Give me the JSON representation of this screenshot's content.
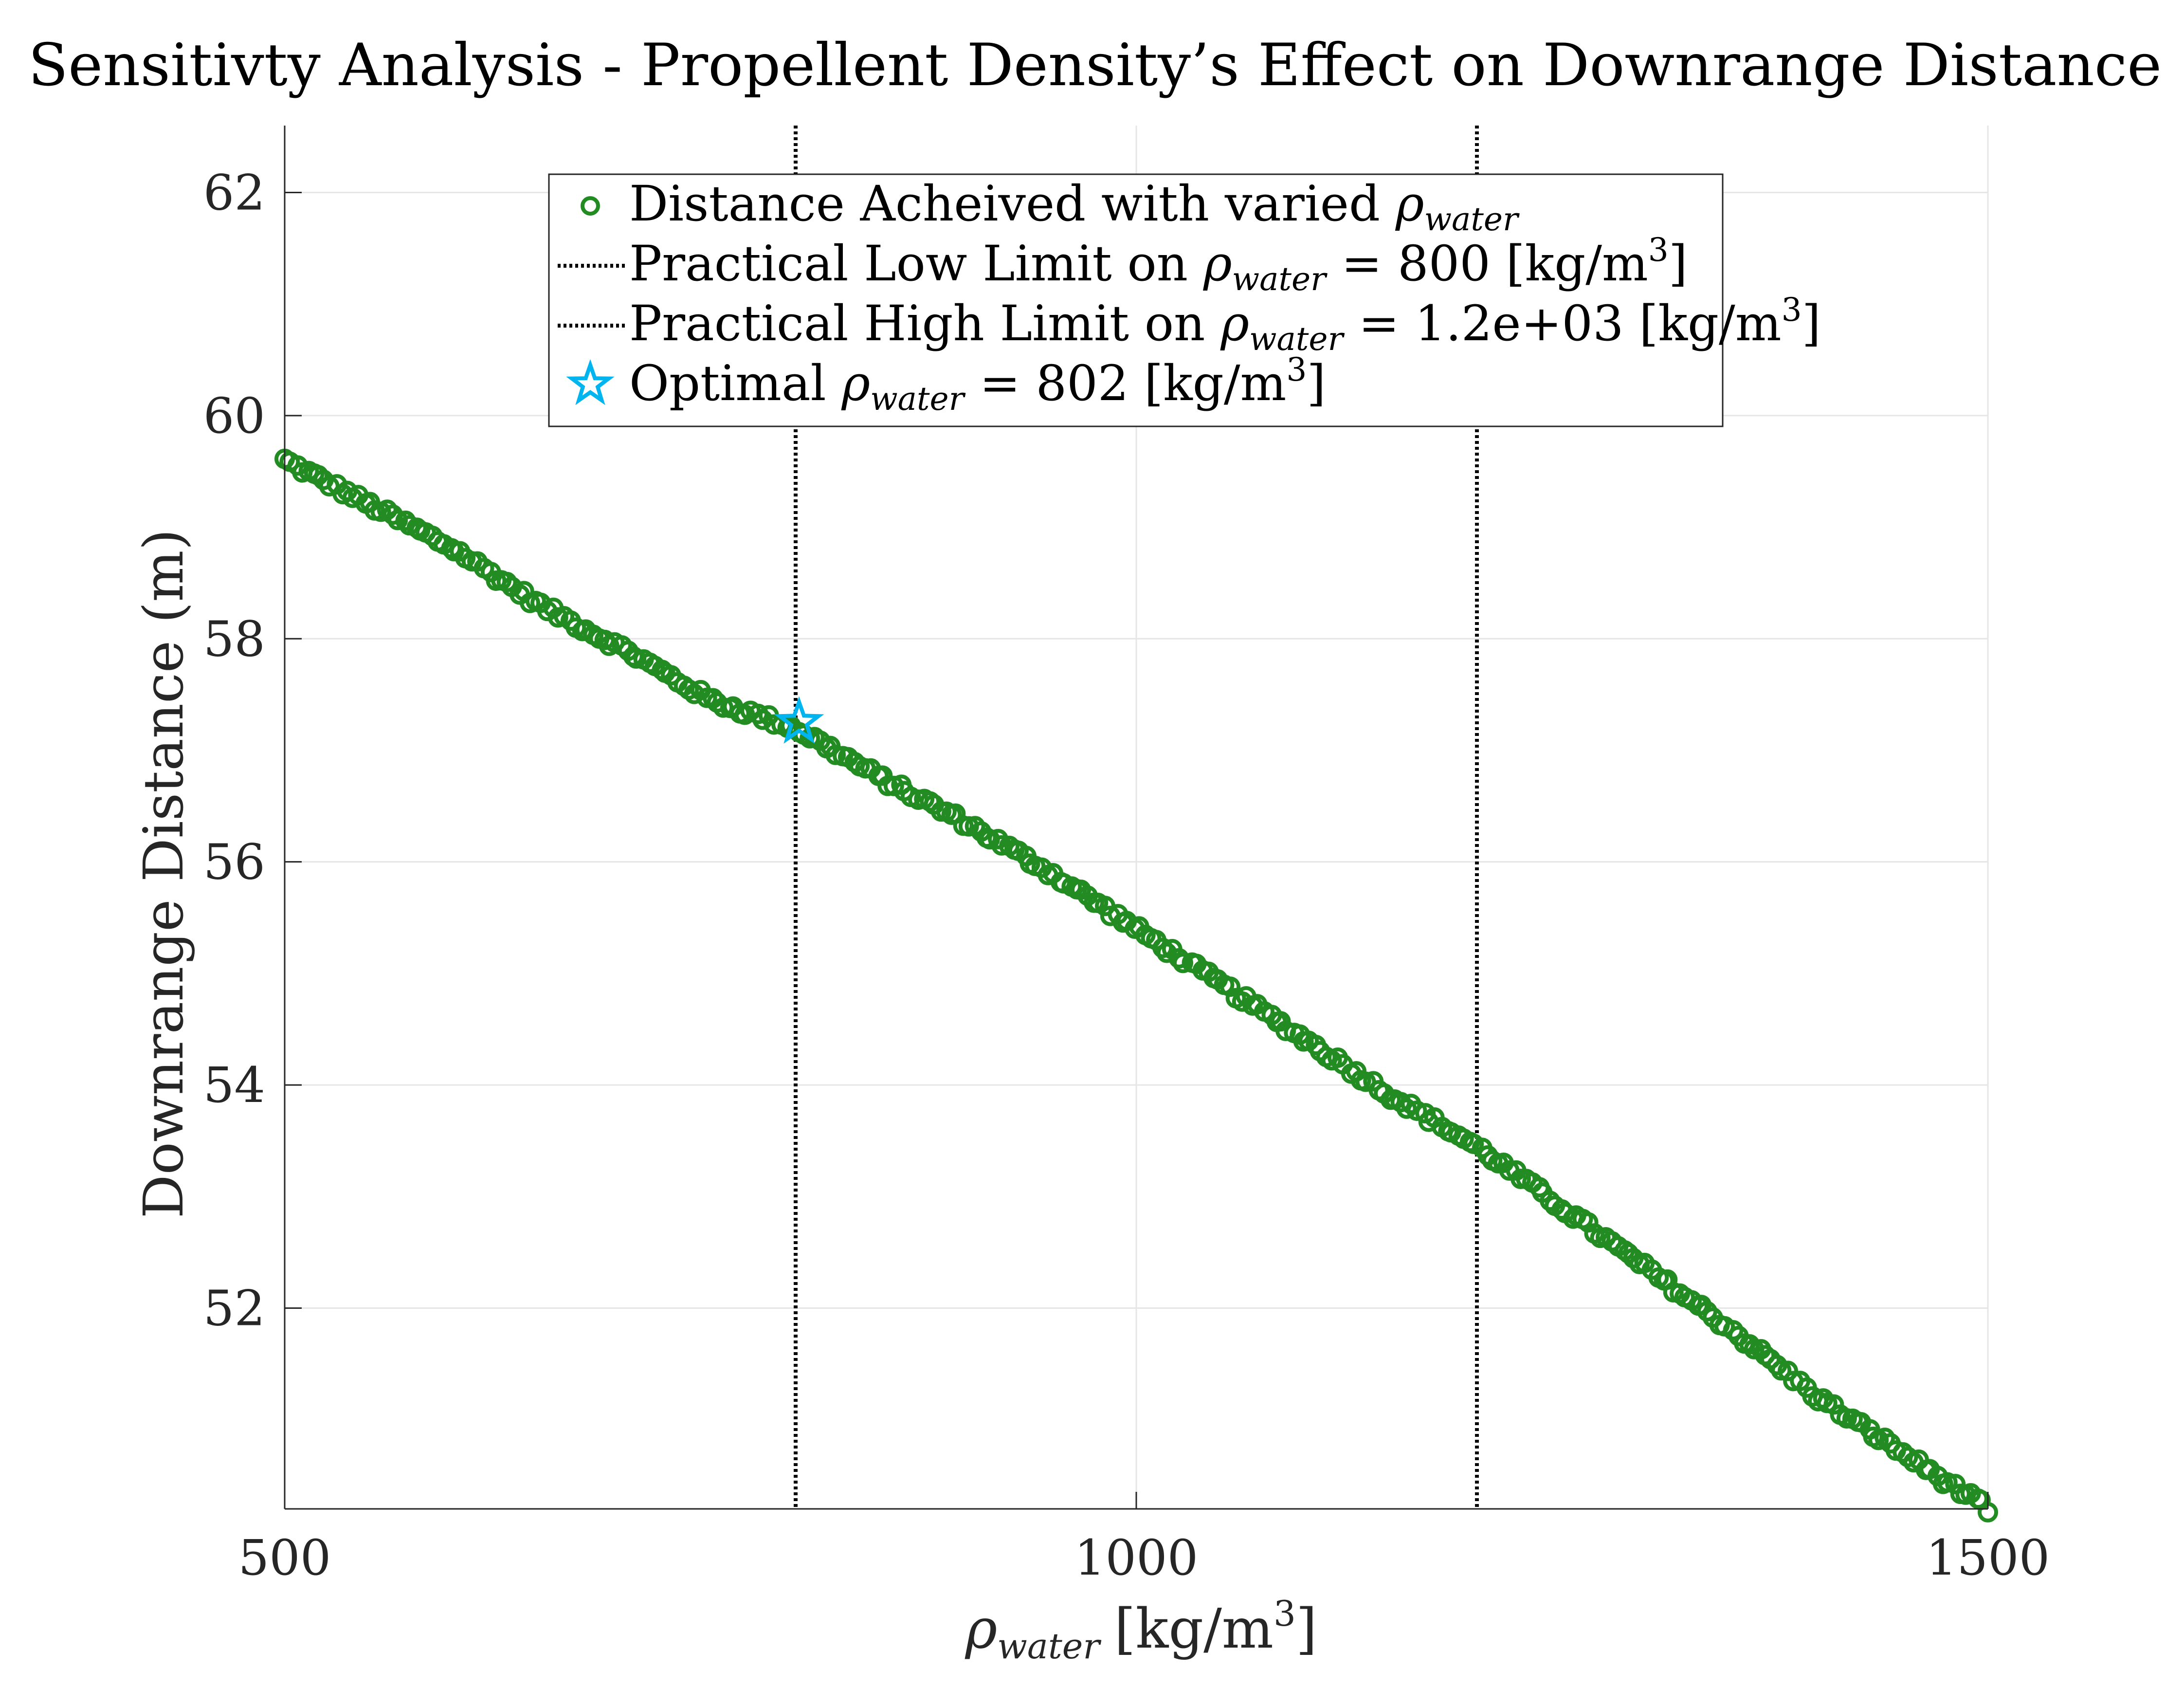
{
  "chart_data": {
    "type": "scatter",
    "title": "Sensitivty Analysis - Propellent Density’s Effect on Downrange Distance",
    "xlabel": {
      "main": "ρ",
      "sub": "water",
      "unit": "[kg/m",
      "sup": "3",
      "close": "]"
    },
    "ylabel": "Downrange Distance (m)",
    "xlim": [
      500,
      1500
    ],
    "ylim": [
      50.2,
      62.6
    ],
    "xticks": [
      500,
      1000,
      1500
    ],
    "yticks": [
      52,
      54,
      56,
      58,
      60,
      62
    ],
    "grid": true,
    "legend_position": "top-center",
    "legend": [
      {
        "kind": "marker-circle",
        "text": "Distance Acheived with varied ",
        "rho": "ρ",
        "sub": "water",
        "tail": ""
      },
      {
        "kind": "line-dotted",
        "text": "Practical Low Limit on ",
        "rho": "ρ",
        "sub": "water",
        "tail": " = 800 [kg/m",
        "sup": "3",
        "close": "]"
      },
      {
        "kind": "line-dotted",
        "text": "Practical High Limit on ",
        "rho": "ρ",
        "sub": "water",
        "tail": " = 1.2e+03 [kg/m",
        "sup": "3",
        "close": "]"
      },
      {
        "kind": "marker-star",
        "text": "Optimal ",
        "rho": "ρ",
        "sub": "water",
        "tail": " = 802 [kg/m",
        "sup": "3",
        "close": "]"
      }
    ],
    "vlines": [
      800,
      1200
    ],
    "optimal": {
      "x": 802,
      "y": 57.25
    },
    "scatter_anchors": {
      "x": [
        500,
        550,
        600,
        650,
        700,
        750,
        800,
        850,
        900,
        950,
        1000,
        1050,
        1100,
        1150,
        1200,
        1250,
        1300,
        1350,
        1400,
        1450,
        1500
      ],
      "y": [
        59.6,
        59.2,
        58.8,
        58.3,
        57.9,
        57.45,
        57.2,
        56.75,
        56.35,
        55.9,
        55.4,
        54.9,
        54.4,
        53.9,
        53.45,
        52.9,
        52.35,
        51.8,
        51.2,
        50.7,
        50.2
      ]
    },
    "scatter_count": 300,
    "colors": {
      "series": "#228B22",
      "optimal": "#00B4F0",
      "vline": "#000000",
      "grid": "#e6e6e6",
      "axis": "#262626"
    }
  }
}
